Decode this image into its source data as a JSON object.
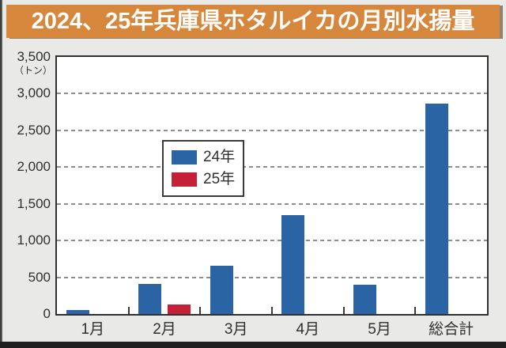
{
  "title": "2024、25年兵庫県ホタルイカの月別水揚量",
  "colors": {
    "title_bg": "#d7873c",
    "title_text": "#ffffff",
    "background": "#e9e9e7",
    "plot_bg": "#ffffff",
    "axis": "#2f2f2f",
    "grid": "#8d8d8b",
    "text": "#2f2f2f",
    "bottom_edge": "#1f1f1f",
    "series_24": "#2a64a5",
    "series_25": "#c52038"
  },
  "chart_data": {
    "type": "bar",
    "title": "2024、25年兵庫県ホタルイカの月別水揚量",
    "unit_label": "（トン）",
    "categories": [
      "1月",
      "2月",
      "3月",
      "4月",
      "5月",
      "総合計"
    ],
    "series": [
      {
        "name": "24年",
        "color_key": "series_24",
        "values": [
          50,
          410,
          660,
          1350,
          400,
          2870
        ]
      },
      {
        "name": "25年",
        "color_key": "series_25",
        "values": [
          null,
          130,
          null,
          null,
          null,
          null
        ]
      }
    ],
    "ylim": [
      0,
      3500
    ],
    "ytick_step": 500,
    "ytick_labels": [
      "0",
      "500",
      "1,000",
      "1,500",
      "2,000",
      "2,500",
      "3,000",
      "3,500"
    ],
    "grid": "horizontal-dashed",
    "legend_position": "upper-left-inside",
    "legend_entries": [
      "24年",
      "25年"
    ]
  }
}
